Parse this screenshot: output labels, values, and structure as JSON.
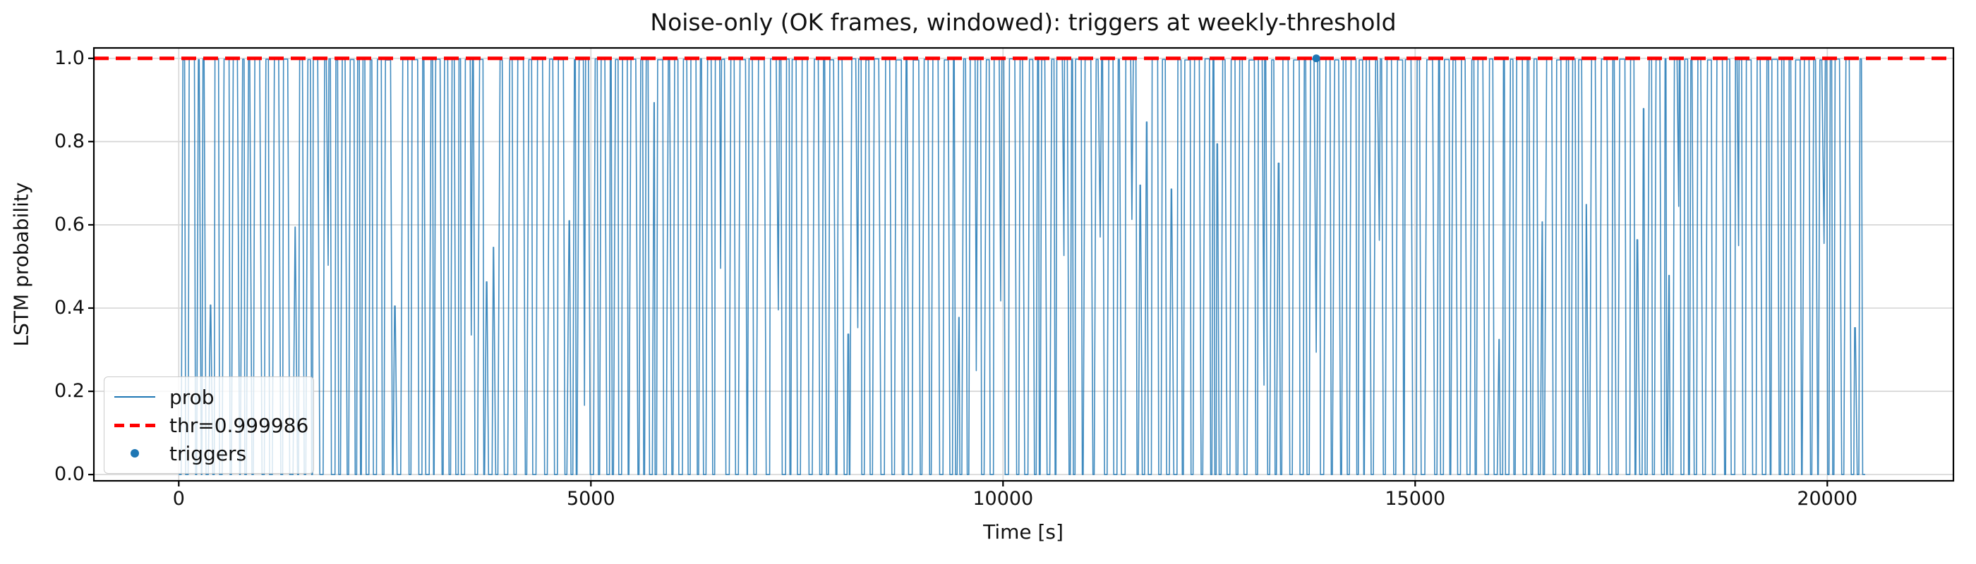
{
  "figure": {
    "title": "Noise-only (OK frames, windowed): triggers at weekly-threshold",
    "background_color": "#ffffff"
  },
  "chart_data": {
    "type": "line",
    "title": "Noise-only (OK frames, windowed): triggers at weekly-threshold",
    "xlabel": "Time [s]",
    "ylabel": "LSTM probability",
    "xlim": [
      -1030,
      21530
    ],
    "ylim": [
      -0.015,
      1.025
    ],
    "x_ticks": [
      0,
      5000,
      10000,
      15000,
      20000
    ],
    "x_tick_labels": [
      "0",
      "5000",
      "10000",
      "15000",
      "20000"
    ],
    "y_ticks": [
      0.0,
      0.2,
      0.4,
      0.6,
      0.8,
      1.0
    ],
    "y_tick_labels": [
      "0.0",
      "0.2",
      "0.4",
      "0.6",
      "0.8",
      "1.0"
    ],
    "grid": true,
    "grid_color": "#d9d9d9",
    "spine_color": "#000000",
    "threshold": {
      "value": 0.999986,
      "label": "thr=0.999986",
      "color": "#ff0000",
      "style": "dashed"
    },
    "series": [
      {
        "name": "prob",
        "color": "#1f77b4",
        "style": "solid",
        "description": "dense noisy square-wave: repeated spikes from 0 up to ~1.0 with flat tops just below threshold, occasional partial peaks and partial dips",
        "t_start": 0,
        "t_end": 20460,
        "approx_period_s": 101,
        "n_spikes_approx": 200,
        "value_low": 0.0,
        "value_high": 0.999,
        "seed": 42
      }
    ],
    "triggers": {
      "name": "triggers",
      "color": "#1f77b4",
      "marker": "circle",
      "points": [
        [
          13800,
          1.0
        ]
      ]
    },
    "legend": {
      "position": "lower left",
      "entries": [
        {
          "label": "prob",
          "type": "line",
          "color": "#1f77b4"
        },
        {
          "label": "thr=0.999986",
          "type": "dashed-line",
          "color": "#ff0000"
        },
        {
          "label": "triggers",
          "type": "marker",
          "color": "#1f77b4"
        }
      ]
    }
  }
}
